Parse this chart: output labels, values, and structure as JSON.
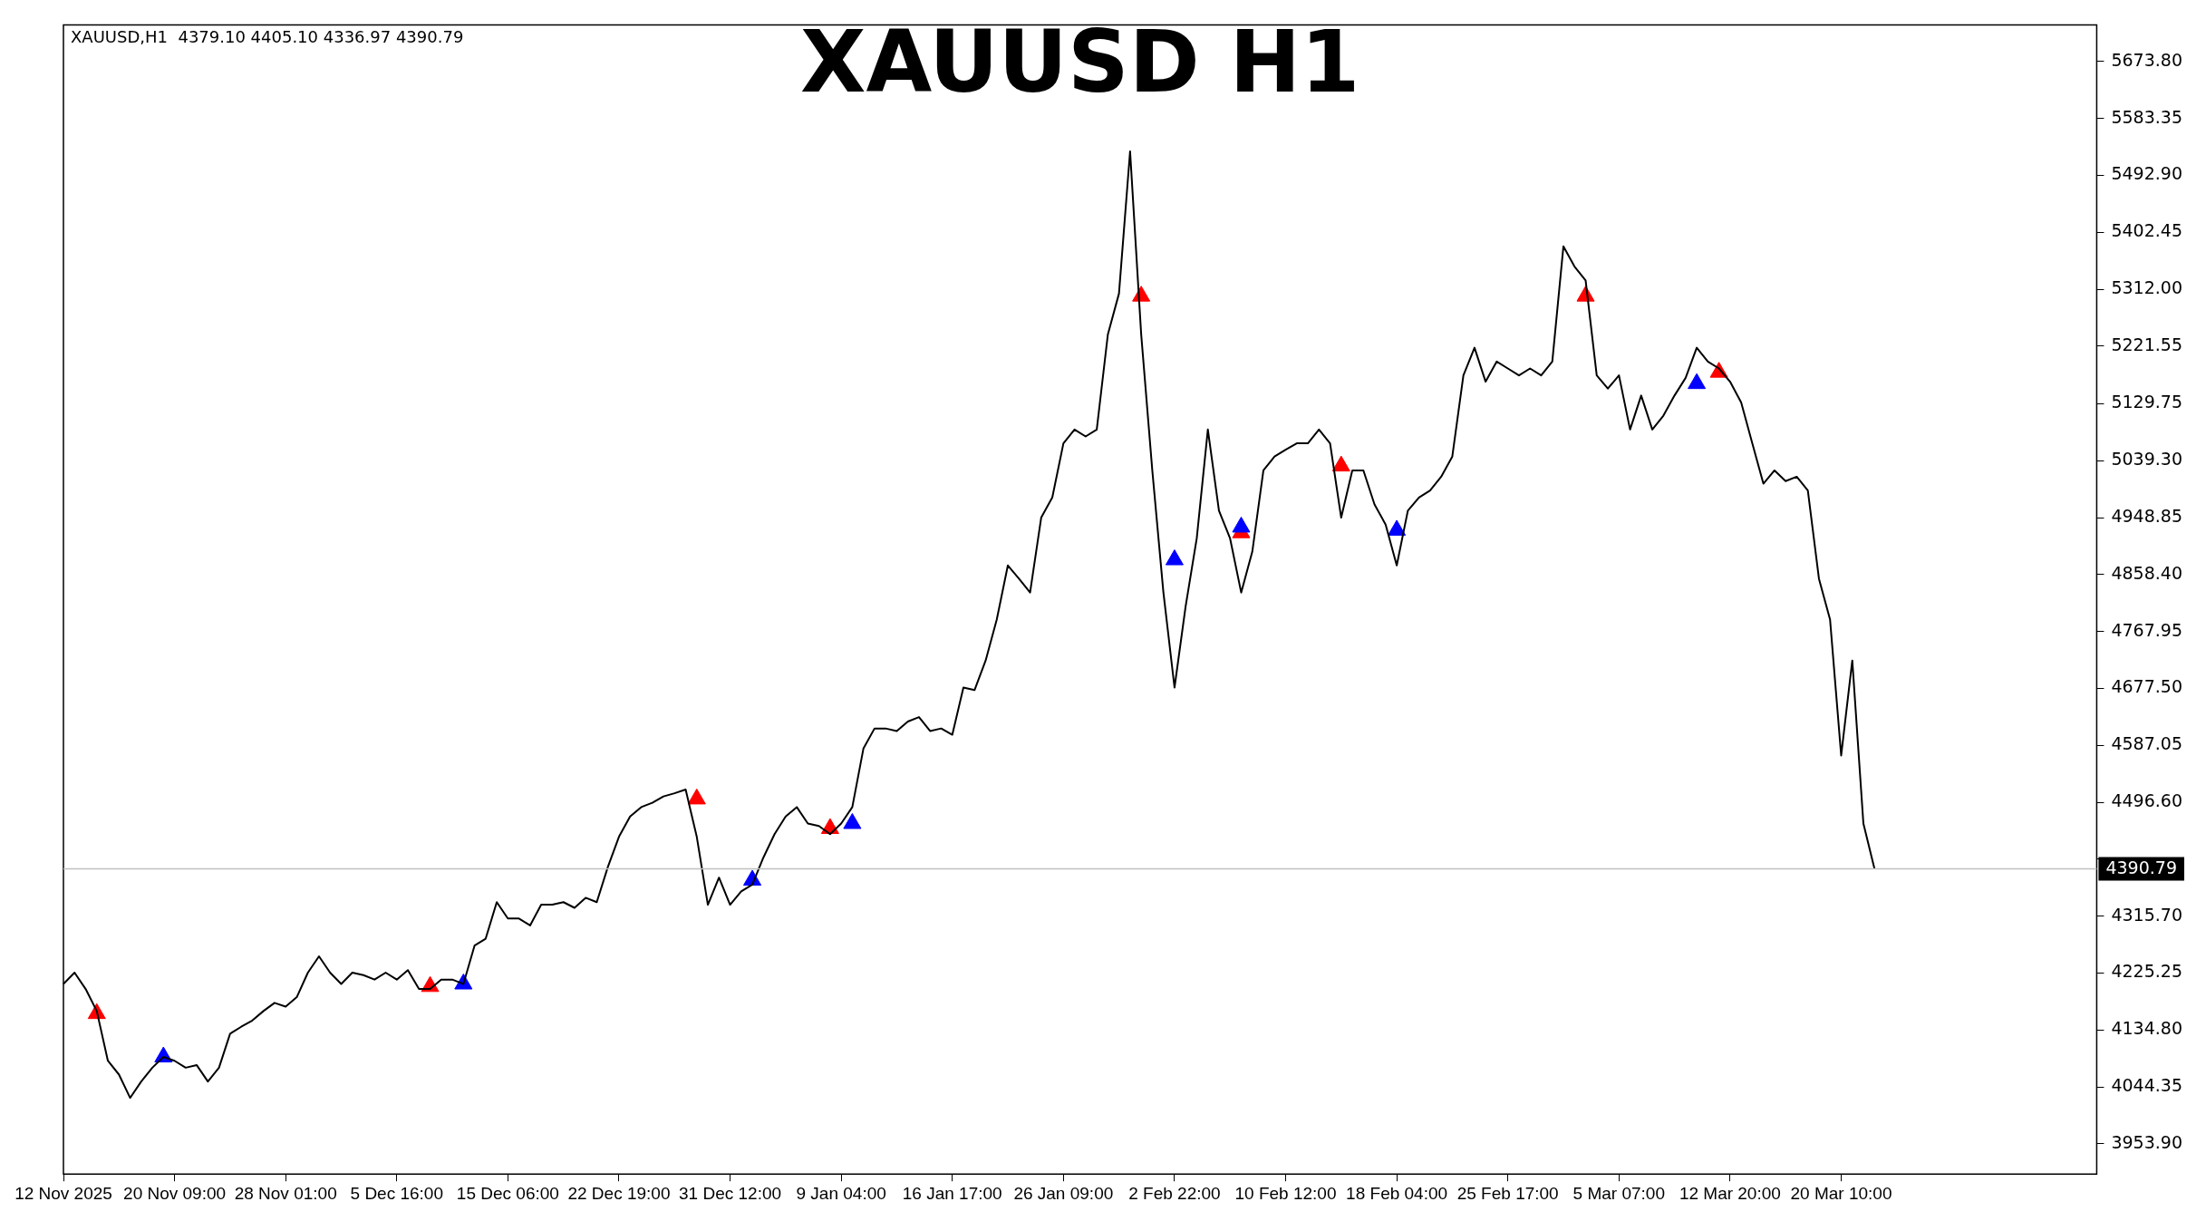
{
  "chart_data": {
    "type": "line",
    "title": "XAUUSD H1",
    "annotations": [
      "XAUUSD,H1  4379.10 4405.10 4336.97 4390.79"
    ],
    "categories": [
      "12 Nov 2025",
      null,
      null,
      null,
      null,
      null,
      null,
      null,
      null,
      null,
      "20 Nov 09:00",
      null,
      null,
      null,
      null,
      null,
      null,
      null,
      null,
      null,
      "28 Nov 01:00",
      null,
      null,
      null,
      null,
      null,
      null,
      null,
      null,
      null,
      "5 Dec 16:00",
      null,
      null,
      null,
      null,
      null,
      null,
      null,
      null,
      null,
      "15 Dec 06:00",
      null,
      null,
      null,
      null,
      null,
      null,
      null,
      null,
      null,
      "22 Dec 19:00",
      null,
      null,
      null,
      null,
      null,
      null,
      null,
      null,
      null,
      "31 Dec 12:00",
      null,
      null,
      null,
      null,
      null,
      null,
      null,
      null,
      null,
      "9 Jan 04:00",
      null,
      null,
      null,
      null,
      null,
      null,
      null,
      null,
      null,
      "16 Jan 17:00",
      null,
      null,
      null,
      null,
      null,
      null,
      null,
      null,
      null,
      "26 Jan 09:00",
      null,
      null,
      null,
      null,
      null,
      null,
      null,
      null,
      null,
      "2 Feb 22:00",
      null,
      null,
      null,
      null,
      null,
      null,
      null,
      null,
      null,
      "10 Feb 12:00",
      null,
      null,
      null,
      null,
      null,
      null,
      null,
      null,
      null,
      "18 Feb 04:00",
      null,
      null,
      null,
      null,
      null,
      null,
      null,
      null,
      null,
      "25 Feb 17:00",
      null,
      null,
      null,
      null,
      null,
      null,
      null,
      null,
      null,
      "5 Mar 07:00",
      null,
      null,
      null,
      null,
      null,
      null,
      null,
      null,
      null,
      "12 Mar 20:00",
      null,
      null,
      null,
      null,
      null,
      null,
      null,
      null,
      null,
      "20 Mar 10:00",
      null,
      null,
      null,
      null,
      null,
      null,
      null,
      null,
      null,
      null,
      null,
      null,
      null,
      null,
      null,
      null,
      null,
      null,
      null,
      null,
      null,
      null,
      null
    ],
    "series": [
      {
        "type": "line",
        "color": "#000000",
        "values": [
          4208,
          4226,
          4200,
          4165,
          4086,
          4064,
          4027,
          4053,
          4075,
          4092,
          4086,
          4075,
          4079,
          4053,
          4075,
          4129,
          4140,
          4150,
          4165,
          4178,
          4172,
          4187,
          4226,
          4252,
          4226,
          4208,
          4226,
          4222,
          4215,
          4226,
          4215,
          4230,
          4200,
          4200,
          4215,
          4215,
          4208,
          4269,
          4280,
          4338,
          4312,
          4312,
          4301,
          4334,
          4334,
          4338,
          4329,
          4345,
          4338,
          4394,
          4442,
          4474,
          4489,
          4496,
          4506,
          4511,
          4517,
          4442,
          4334,
          4377,
          4334,
          4355,
          4366,
          4409,
          4446,
          4474,
          4489,
          4463,
          4459,
          4446,
          4463,
          4489,
          4582,
          4614,
          4614,
          4610,
          4625,
          4632,
          4610,
          4614,
          4604,
          4679,
          4675,
          4722,
          4787,
          4873,
          4852,
          4830,
          4949,
          4981,
          5067,
          5089,
          5078,
          5089,
          5240,
          5305,
          5531,
          5240,
          5024,
          4830,
          4679,
          4808,
          4916,
          5089,
          4960,
          4916,
          4830,
          4895,
          5024,
          5046,
          5057,
          5067,
          5067,
          5089,
          5067,
          4949,
          5024,
          5024,
          4970,
          4938,
          4873,
          4960,
          4981,
          4992,
          5014,
          5046,
          5175,
          5219,
          5165,
          5197,
          5186,
          5175,
          5186,
          5175,
          5197,
          5380,
          5348,
          5326,
          5175,
          5154,
          5175,
          5089,
          5143,
          5089,
          5111,
          5143,
          5171,
          5219,
          5197,
          5186,
          5165,
          5132,
          5067,
          5003,
          5024,
          5007,
          5014,
          4992,
          4852,
          4787,
          4571,
          4722,
          4463,
          4391,
          null,
          null,
          null,
          null,
          null,
          null,
          null,
          null,
          null,
          null,
          null,
          null,
          null,
          null,
          null,
          null,
          null,
          null,
          null,
          null
        ]
      },
      {
        "type": "scatter",
        "color": "#0000ff",
        "marker": "triangle",
        "values": [
          null,
          null,
          null,
          null,
          null,
          null,
          null,
          null,
          null,
          4092,
          null,
          null,
          null,
          null,
          null,
          null,
          null,
          null,
          null,
          null,
          null,
          null,
          null,
          null,
          null,
          null,
          null,
          null,
          null,
          null,
          null,
          null,
          null,
          null,
          null,
          null,
          4208,
          null,
          null,
          null,
          null,
          null,
          null,
          null,
          null,
          null,
          null,
          null,
          null,
          null,
          null,
          null,
          null,
          null,
          null,
          null,
          null,
          null,
          null,
          null,
          null,
          null,
          4373,
          null,
          null,
          null,
          null,
          null,
          null,
          null,
          null,
          4463,
          null,
          null,
          null,
          null,
          null,
          null,
          null,
          null,
          null,
          null,
          null,
          null,
          null,
          null,
          null,
          null,
          null,
          null,
          null,
          null,
          null,
          null,
          null,
          null,
          null,
          null,
          null,
          null,
          4882,
          null,
          null,
          null,
          null,
          null,
          4934,
          null,
          null,
          null,
          null,
          null,
          null,
          null,
          null,
          null,
          null,
          null,
          null,
          null,
          4929,
          null,
          null,
          null,
          null,
          null,
          null,
          null,
          null,
          null,
          null,
          null,
          null,
          null,
          null,
          null,
          null,
          null,
          null,
          null,
          null,
          null,
          null,
          null,
          null,
          null,
          null,
          5162,
          null,
          null,
          null,
          null,
          null,
          null,
          null,
          null,
          null,
          null,
          null,
          null,
          null,
          null,
          null,
          null,
          null,
          null,
          null,
          null,
          null,
          null,
          null,
          null,
          null,
          null,
          null,
          null,
          null,
          null,
          null,
          null,
          null,
          null,
          null,
          null
        ]
      },
      {
        "type": "scatter",
        "color": "#ff0000",
        "marker": "triangle",
        "values": [
          null,
          null,
          null,
          4161,
          null,
          null,
          null,
          null,
          null,
          null,
          null,
          null,
          null,
          null,
          null,
          null,
          null,
          null,
          null,
          null,
          null,
          null,
          null,
          null,
          null,
          null,
          null,
          null,
          null,
          null,
          null,
          null,
          null,
          4204,
          null,
          null,
          null,
          null,
          null,
          null,
          null,
          null,
          null,
          null,
          null,
          null,
          null,
          null,
          null,
          null,
          null,
          null,
          null,
          null,
          null,
          null,
          null,
          4502,
          null,
          null,
          null,
          null,
          null,
          null,
          null,
          null,
          null,
          null,
          null,
          4455,
          null,
          null,
          null,
          null,
          null,
          null,
          null,
          null,
          null,
          null,
          null,
          null,
          null,
          null,
          null,
          null,
          null,
          null,
          null,
          null,
          null,
          null,
          null,
          null,
          null,
          null,
          null,
          5301,
          null,
          null,
          null,
          null,
          null,
          null,
          null,
          null,
          4925,
          null,
          null,
          null,
          null,
          null,
          null,
          null,
          null,
          5031,
          null,
          null,
          null,
          null,
          null,
          null,
          null,
          null,
          null,
          null,
          null,
          null,
          null,
          null,
          null,
          null,
          null,
          null,
          null,
          null,
          null,
          5301,
          null,
          null,
          null,
          null,
          null,
          null,
          null,
          null,
          null,
          null,
          null,
          5180,
          null,
          null,
          null,
          null,
          null,
          null,
          null,
          null,
          null,
          null,
          null,
          null,
          null,
          null,
          null,
          null,
          null,
          null,
          null,
          null,
          null,
          null,
          null,
          null,
          null,
          null,
          null,
          null,
          null,
          null,
          null,
          null,
          null,
          null
        ]
      }
    ],
    "ylim": [
      3906,
      5732
    ],
    "yticks": [
      {
        "value": 3953.9,
        "label": "3953.90"
      },
      {
        "value": 4044.35,
        "label": "4044.35"
      },
      {
        "value": 4134.8,
        "label": "4134.80"
      },
      {
        "value": 4225.25,
        "label": "4225.25"
      },
      {
        "value": 4315.7,
        "label": "4315.70"
      },
      {
        "value": 4406.15,
        "label": null
      },
      {
        "value": 4496.6,
        "label": "4496.60"
      },
      {
        "value": 4587.05,
        "label": "4587.05"
      },
      {
        "value": 4677.5,
        "label": "4677.50"
      },
      {
        "value": 4767.95,
        "label": "4767.95"
      },
      {
        "value": 4858.4,
        "label": "4858.40"
      },
      {
        "value": 4948.85,
        "label": "4948.85"
      },
      {
        "value": 5039.3,
        "label": "5039.30"
      },
      {
        "value": 5129.75,
        "label": "5129.75"
      },
      {
        "value": 5221.55,
        "label": "5221.55"
      },
      {
        "value": 5312,
        "label": "5312.00"
      },
      {
        "value": 5402.45,
        "label": "5402.45"
      },
      {
        "value": 5492.9,
        "label": "5492.90"
      },
      {
        "value": 5583.35,
        "label": "5583.35"
      },
      {
        "value": 5673.8,
        "label": "5673.80"
      }
    ],
    "grid": false,
    "legend": false,
    "marker": "none",
    "ref_lines": [
      {
        "axis": "y",
        "value": 4390.79,
        "label": "4390.79",
        "color": "#c0c0c0"
      }
    ]
  }
}
